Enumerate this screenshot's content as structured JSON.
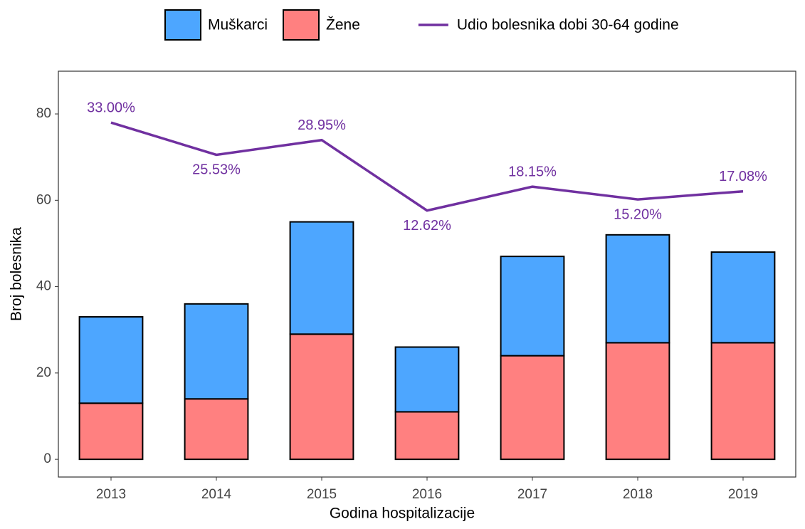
{
  "chart_data": {
    "type": "stacked-bar-line",
    "x_label": "Godina hospitalizacije",
    "y_label": "Broj bolesnika",
    "categories": [
      "2013",
      "2014",
      "2015",
      "2016",
      "2017",
      "2018",
      "2019"
    ],
    "series": [
      {
        "name": "Muškarci",
        "color": "#4da6ff",
        "type": "bar",
        "values": [
          20,
          22,
          26,
          15,
          23,
          25,
          21
        ]
      },
      {
        "name": "Žene",
        "color": "#ff8080",
        "type": "bar",
        "values": [
          13,
          14,
          29,
          11,
          24,
          27,
          27
        ]
      },
      {
        "name": "Udio bolesnika dobi 30-64 godine",
        "color": "#7030a0",
        "type": "line",
        "axis": "y2",
        "values": [
          33.0,
          25.53,
          28.95,
          12.62,
          18.15,
          15.2,
          17.08
        ],
        "value_labels": [
          "33.00%",
          "25.53%",
          "28.95%",
          "12.62%",
          "18.15%",
          "15.20%",
          "17.08%"
        ]
      }
    ],
    "stack_order": [
      "Žene",
      "Muškarci"
    ],
    "ylim": [
      -4.1,
      89.9
    ],
    "yticks": [
      0,
      20,
      40,
      60,
      80
    ],
    "y2lim": [
      -49.1,
      44.9
    ],
    "grid": true,
    "legend": "top"
  }
}
